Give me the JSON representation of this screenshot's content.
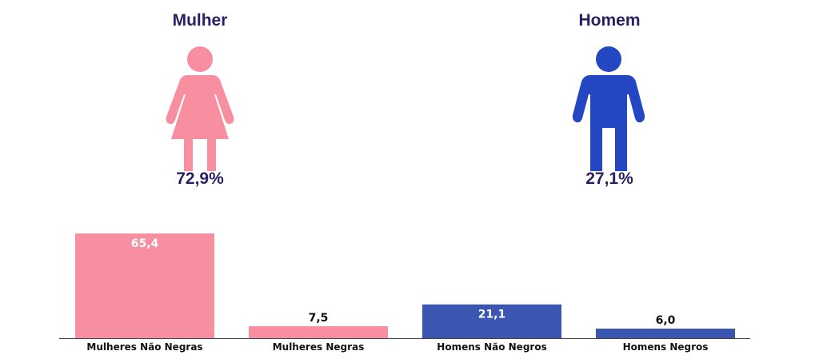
{
  "header": {
    "woman_title": "Mulher",
    "man_title": "Homem",
    "woman_pct": "72,9%",
    "man_pct": "27,1%"
  },
  "icons": {
    "woman": "woman-icon",
    "man": "man-icon"
  },
  "colors": {
    "pink": "#f78fa0",
    "blue": "#2346c2",
    "bar_blue": "#3a56b0",
    "title": "#2a1f63"
  },
  "chart_data": {
    "type": "bar",
    "categories": [
      "Mulheres Não Negras",
      "Mulheres Negras",
      "Homens Não Negros",
      "Homens Negros"
    ],
    "values": [
      65.4,
      7.5,
      21.1,
      6.0
    ],
    "value_labels": [
      "65,4",
      "7,5",
      "21,1",
      "6,0"
    ],
    "bar_colors": [
      "#f78fa0",
      "#f78fa0",
      "#3a56b0",
      "#3a56b0"
    ],
    "ylim": [
      0,
      65.4
    ],
    "title": "",
    "xlabel": "",
    "ylabel": "",
    "grid": false
  }
}
